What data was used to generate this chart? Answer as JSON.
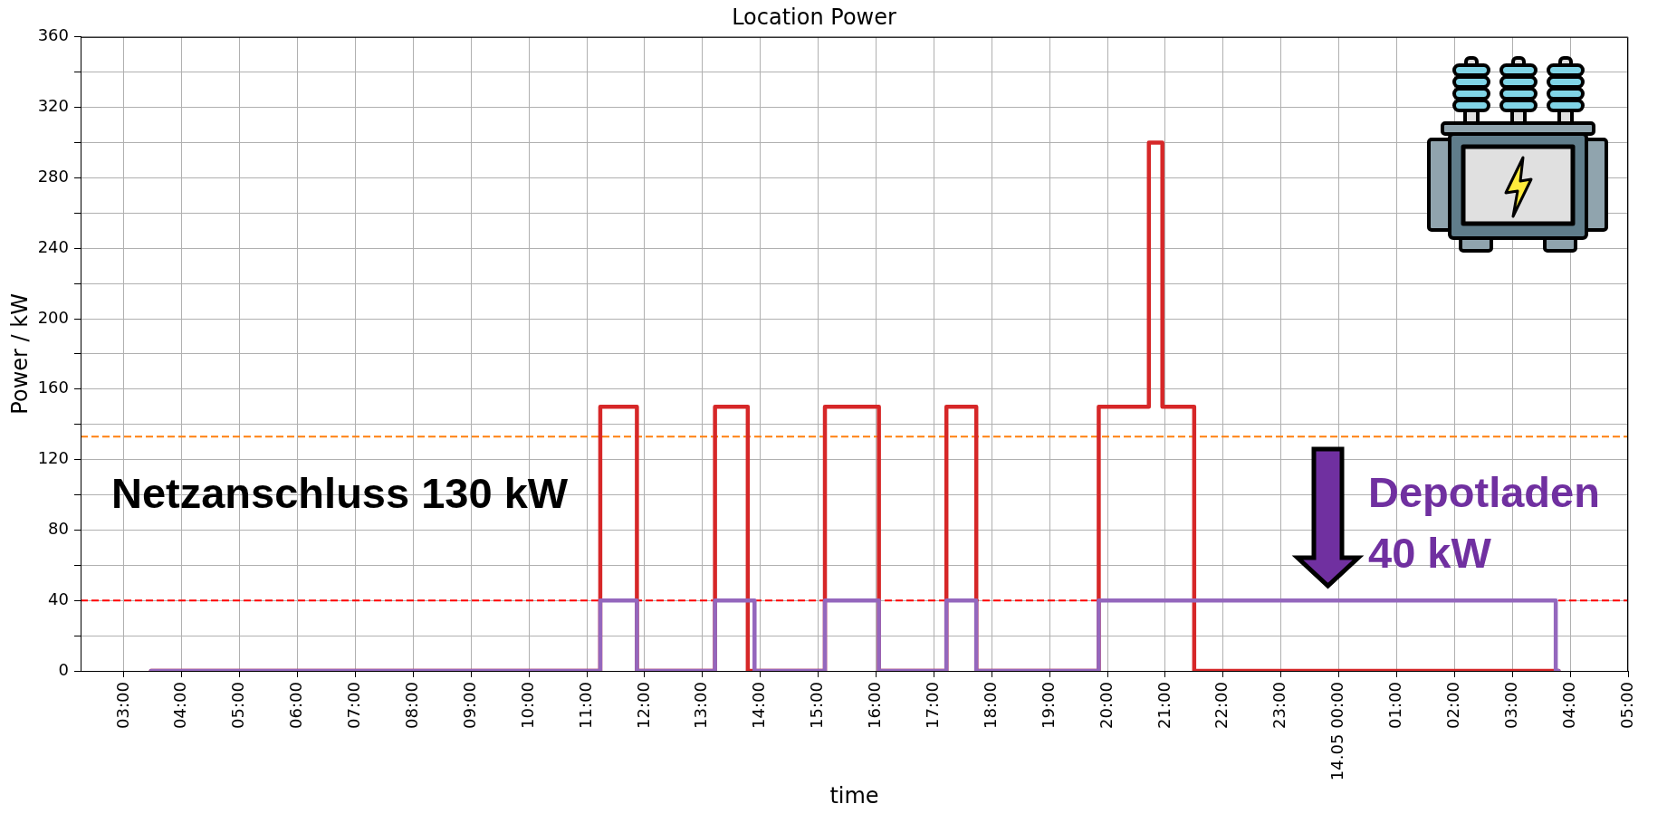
{
  "chart_data": {
    "type": "step",
    "title": "Location Power",
    "xlabel": "time",
    "ylabel": "Power / kW",
    "xlim": [
      "--05-13T02:15",
      "--05-14T05:00"
    ],
    "xticks": [
      {
        "value": "--05-13T03:00",
        "label": "03:00"
      },
      {
        "value": "--05-13T04:00",
        "label": "04:00"
      },
      {
        "value": "--05-13T05:00",
        "label": "05:00"
      },
      {
        "value": "--05-13T06:00",
        "label": "06:00"
      },
      {
        "value": "--05-13T07:00",
        "label": "07:00"
      },
      {
        "value": "--05-13T08:00",
        "label": "08:00"
      },
      {
        "value": "--05-13T09:00",
        "label": "09:00"
      },
      {
        "value": "--05-13T10:00",
        "label": "10:00"
      },
      {
        "value": "--05-13T11:00",
        "label": "11:00"
      },
      {
        "value": "--05-13T12:00",
        "label": "12:00"
      },
      {
        "value": "--05-13T13:00",
        "label": "13:00"
      },
      {
        "value": "--05-13T14:00",
        "label": "14:00"
      },
      {
        "value": "--05-13T15:00",
        "label": "15:00"
      },
      {
        "value": "--05-13T16:00",
        "label": "16:00"
      },
      {
        "value": "--05-13T17:00",
        "label": "17:00"
      },
      {
        "value": "--05-13T18:00",
        "label": "18:00"
      },
      {
        "value": "--05-13T19:00",
        "label": "19:00"
      },
      {
        "value": "--05-13T20:00",
        "label": "20:00"
      },
      {
        "value": "--05-13T21:00",
        "label": "21:00"
      },
      {
        "value": "--05-13T22:00",
        "label": "22:00"
      },
      {
        "value": "--05-13T23:00",
        "label": "23:00"
      },
      {
        "value": "--05-14T00:00",
        "label": "14.05 00:00"
      },
      {
        "value": "--05-14T01:00",
        "label": "01:00"
      },
      {
        "value": "--05-14T02:00",
        "label": "02:00"
      },
      {
        "value": "--05-14T03:00",
        "label": "03:00"
      },
      {
        "value": "--05-14T04:00",
        "label": "04:00"
      },
      {
        "value": "--05-14T05:00",
        "label": "05:00"
      }
    ],
    "ylim": [
      0,
      360
    ],
    "yticks": [
      0,
      {
        "value": 20,
        "label": null
      },
      40,
      {
        "value": 60,
        "label": null
      },
      80,
      {
        "value": 100,
        "label": null
      },
      120,
      {
        "value": 140,
        "label": null
      },
      160,
      {
        "value": 180,
        "label": null
      },
      200,
      {
        "value": 220,
        "label": null
      },
      240,
      {
        "value": 260,
        "label": null
      },
      280,
      {
        "value": 300,
        "label": null
      },
      320,
      {
        "value": 340,
        "label": null
      },
      360
    ],
    "grid": true,
    "series": [
      {
        "color": "#d62728",
        "x": [
          "--05-13T03:28",
          "--05-13T11:14",
          "--05-13T11:52",
          "--05-13T13:13",
          "--05-13T13:47",
          "--05-13T15:07",
          "--05-13T16:03",
          "--05-13T17:13",
          "--05-13T17:44",
          "--05-13T19:51",
          "--05-13T20:43",
          "--05-13T20:57",
          "--05-13T21:30",
          "--05-14T03:48"
        ],
        "values": [
          0,
          150,
          0,
          150,
          0,
          150,
          0,
          150,
          0,
          150,
          300,
          150,
          0,
          0
        ]
      },
      {
        "color": "#9467bd",
        "x": [
          "--05-13T03:28",
          "--05-13T11:14",
          "--05-13T11:52",
          "--05-13T13:13",
          "--05-13T13:54",
          "--05-13T15:07",
          "--05-13T16:03",
          "--05-13T17:13",
          "--05-13T17:44",
          "--05-13T19:51",
          "--05-14T03:45",
          "--05-14T03:48"
        ],
        "values": [
          0,
          40,
          0,
          40,
          0,
          40,
          0,
          40,
          0,
          40,
          0,
          0
        ]
      }
    ],
    "ref_lines": [
      {
        "axis": "y",
        "value": 133,
        "label": "Netzanschluss 130 kW",
        "color": "#ff7f0e",
        "line_style": "dashed"
      },
      {
        "axis": "y",
        "value": 40,
        "label": "Depotladen\n40 kW",
        "color": "#ff0000",
        "line_style": "dashed"
      }
    ]
  }
}
